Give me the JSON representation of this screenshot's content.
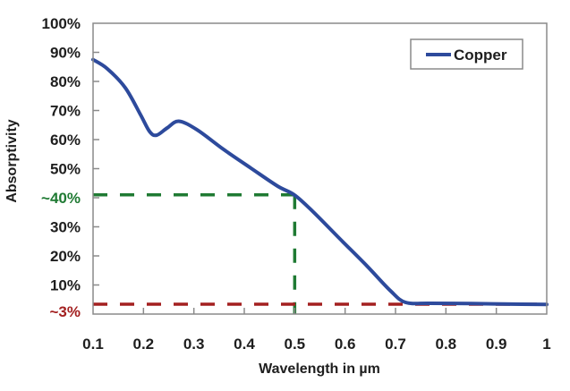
{
  "chart_data": {
    "type": "line",
    "title": "",
    "xlabel": "Wavelength in µm",
    "ylabel": "Absorptivity",
    "xlim": [
      0.1,
      1.0
    ],
    "ylim": [
      0,
      100
    ],
    "x_ticks": [
      0.1,
      0.2,
      0.3,
      0.4,
      0.5,
      0.6,
      0.7,
      0.8,
      0.9,
      1.0
    ],
    "x_tick_labels": [
      "0.1",
      "0.2",
      "0.3",
      "0.4",
      "0.5",
      "0.6",
      "0.7",
      "0.8",
      "0.9",
      "1"
    ],
    "y_ticks": [
      10,
      20,
      30,
      40,
      50,
      60,
      70,
      80,
      90,
      100
    ],
    "y_tick_labels": [
      "10%",
      "20%",
      "30%",
      "~40%",
      "50%",
      "60%",
      "70%",
      "80%",
      "90%",
      "100%"
    ],
    "y_zero_label": "~3%",
    "grid": false,
    "legend": {
      "position": "top-right",
      "entries": [
        "Copper"
      ]
    },
    "series": [
      {
        "name": "Copper",
        "color": "#2d4a9c",
        "x": [
          0.1,
          0.128,
          0.164,
          0.194,
          0.212,
          0.226,
          0.247,
          0.27,
          0.306,
          0.359,
          0.413,
          0.466,
          0.5,
          0.537,
          0.59,
          0.643,
          0.69,
          0.72,
          0.768,
          0.85,
          0.95,
          1.0
        ],
        "y": [
          87.5,
          84.4,
          77.8,
          68.6,
          62.8,
          61.5,
          64.0,
          66.3,
          63.4,
          56.6,
          50.2,
          44.0,
          40.9,
          35.1,
          25.8,
          16.6,
          8.0,
          4.0,
          3.7,
          3.6,
          3.4,
          3.3
        ]
      }
    ],
    "annotations": [
      {
        "type": "hline",
        "y": 41,
        "x_end": 0.5,
        "color": "#1f7a33",
        "style": "dashed",
        "label": "~40%"
      },
      {
        "type": "vline",
        "x": 0.5,
        "y_end": 41,
        "color": "#1f7a33",
        "style": "dashed"
      },
      {
        "type": "hline",
        "y": 3.4,
        "x_end": 1.0,
        "color": "#a32020",
        "style": "dashed",
        "label": "~3%"
      }
    ],
    "tick_label_colors": {
      "~40%": "#1f7a33",
      "~3%": "#a32020",
      "default": "#1e1e1e"
    }
  }
}
